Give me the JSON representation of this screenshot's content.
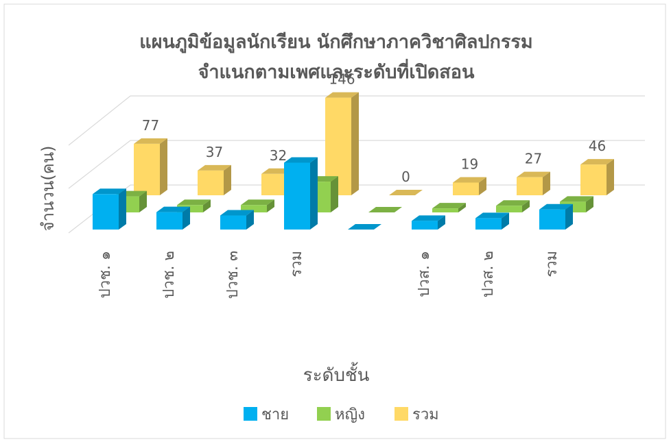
{
  "chart_data": {
    "type": "bar3d",
    "title": "แผนภูมิข้อมูลนักเรียน นักศึกษาภาควิชาศิลปกรรม",
    "subtitle": "จำแนกตามเพศและระดับที่เปิดสอน",
    "y_label": "จำนวน(คน)",
    "x_label": "ระดับชั้น",
    "categories": [
      "ปวช. ๑",
      "ปวช. ๒",
      "ปวช. ๓",
      "รวม",
      null,
      "ปวส. ๑",
      "ปวส. ๒",
      "รวม"
    ],
    "ylim": [
      0,
      150
    ],
    "series": [
      {
        "name": "ชาย",
        "color": "#00b0f0",
        "values": [
          53,
          26,
          21,
          100,
          0,
          13,
          17,
          30
        ]
      },
      {
        "name": "หญิง",
        "color": "#92d050",
        "values": [
          24,
          11,
          11,
          46,
          0,
          6,
          10,
          16
        ]
      },
      {
        "name": "รวม",
        "color": "#ffd966",
        "values": [
          77,
          37,
          32,
          146,
          0,
          19,
          27,
          46
        ],
        "show_labels": true
      }
    ]
  }
}
